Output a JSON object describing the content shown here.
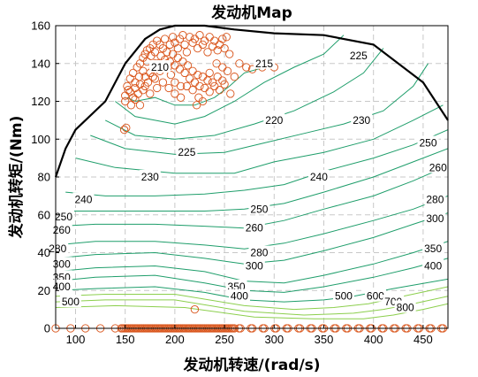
{
  "chart_data": {
    "type": "contour",
    "title": "发动机Map",
    "xlabel": "发动机转速/(rad/s)",
    "ylabel": "发动机转矩/(Nm)",
    "xlim": [
      80,
      475
    ],
    "ylim": [
      0,
      160
    ],
    "xticks": [
      "100",
      "150",
      "200",
      "250",
      "300",
      "350",
      "400",
      "450"
    ],
    "yticks": [
      "0",
      "20",
      "40",
      "60",
      "80",
      "100",
      "120",
      "140",
      "160"
    ],
    "grid": true,
    "colors": {
      "contour": "#1f9e6b",
      "contour_high": "#8ccf4d",
      "boundary": "#000000",
      "marker": "#d9541a"
    },
    "max_torque_curve": [
      [
        80,
        80
      ],
      [
        90,
        95
      ],
      [
        100,
        105
      ],
      [
        130,
        120
      ],
      [
        150,
        140
      ],
      [
        170,
        153
      ],
      [
        185,
        158
      ],
      [
        200,
        160
      ],
      [
        230,
        160
      ],
      [
        260,
        158
      ],
      [
        300,
        156
      ],
      [
        350,
        155
      ],
      [
        400,
        150
      ],
      [
        450,
        130
      ],
      [
        475,
        110
      ]
    ],
    "contour_labels": [
      {
        "text": "210",
        "x": 185,
        "y": 138
      },
      {
        "text": "215",
        "x": 290,
        "y": 140
      },
      {
        "text": "225",
        "x": 385,
        "y": 144
      },
      {
        "text": "220",
        "x": 300,
        "y": 110
      },
      {
        "text": "230",
        "x": 388,
        "y": 110
      },
      {
        "text": "225",
        "x": 212,
        "y": 93
      },
      {
        "text": "230",
        "x": 175,
        "y": 80
      },
      {
        "text": "240",
        "x": 345,
        "y": 80
      },
      {
        "text": "250",
        "x": 455,
        "y": 98
      },
      {
        "text": "260",
        "x": 465,
        "y": 85
      },
      {
        "text": "240",
        "x": 108,
        "y": 68
      },
      {
        "text": "250",
        "x": 88,
        "y": 59
      },
      {
        "text": "260",
        "x": 86,
        "y": 52
      },
      {
        "text": "250",
        "x": 285,
        "y": 63
      },
      {
        "text": "260",
        "x": 280,
        "y": 53
      },
      {
        "text": "280",
        "x": 462,
        "y": 68
      },
      {
        "text": "300",
        "x": 462,
        "y": 58
      },
      {
        "text": "280",
        "x": 82,
        "y": 42
      },
      {
        "text": "300",
        "x": 86,
        "y": 34
      },
      {
        "text": "350",
        "x": 86,
        "y": 27
      },
      {
        "text": "400",
        "x": 86,
        "y": 22
      },
      {
        "text": "500",
        "x": 95,
        "y": 14
      },
      {
        "text": "280",
        "x": 285,
        "y": 40
      },
      {
        "text": "300",
        "x": 280,
        "y": 33
      },
      {
        "text": "350",
        "x": 460,
        "y": 42
      },
      {
        "text": "400",
        "x": 460,
        "y": 33
      },
      {
        "text": "350",
        "x": 262,
        "y": 22
      },
      {
        "text": "400",
        "x": 265,
        "y": 17
      },
      {
        "text": "500",
        "x": 370,
        "y": 17
      },
      {
        "text": "600",
        "x": 402,
        "y": 17
      },
      {
        "text": "700",
        "x": 420,
        "y": 14
      },
      {
        "text": "800",
        "x": 432,
        "y": 11
      }
    ],
    "contour_lines": [
      {
        "level": 210,
        "points": [
          [
            152,
            122
          ],
          [
            160,
            120
          ],
          [
            180,
            122
          ],
          [
            200,
            118
          ],
          [
            220,
            118
          ],
          [
            240,
            122
          ],
          [
            255,
            128
          ],
          [
            270,
            135
          ],
          [
            290,
            138
          ],
          [
            300,
            138
          ]
        ]
      },
      {
        "level": 215,
        "points": [
          [
            140,
            120
          ],
          [
            160,
            112
          ],
          [
            200,
            108
          ],
          [
            230,
            112
          ],
          [
            260,
            120
          ],
          [
            290,
            130
          ],
          [
            320,
            138
          ],
          [
            350,
            145
          ],
          [
            370,
            155
          ]
        ]
      },
      {
        "level": 220,
        "points": [
          [
            130,
            110
          ],
          [
            160,
            102
          ],
          [
            200,
            100
          ],
          [
            240,
            102
          ],
          [
            280,
            108
          ],
          [
            320,
            115
          ],
          [
            360,
            125
          ],
          [
            390,
            135
          ],
          [
            410,
            148
          ]
        ]
      },
      {
        "level": 225,
        "points": [
          [
            115,
            102
          ],
          [
            150,
            95
          ],
          [
            200,
            92
          ],
          [
            250,
            93
          ],
          [
            290,
            98
          ],
          [
            330,
            103
          ],
          [
            370,
            108
          ],
          [
            410,
            115
          ],
          [
            440,
            128
          ],
          [
            455,
            140
          ]
        ]
      },
      {
        "level": 230,
        "points": [
          [
            100,
            90
          ],
          [
            140,
            85
          ],
          [
            200,
            82
          ],
          [
            260,
            82
          ],
          [
            300,
            88
          ],
          [
            350,
            93
          ],
          [
            400,
            100
          ],
          [
            440,
            110
          ],
          [
            470,
            118
          ]
        ]
      },
      {
        "level": 240,
        "points": [
          [
            90,
            72
          ],
          [
            130,
            70
          ],
          [
            180,
            70
          ],
          [
            230,
            71
          ],
          [
            270,
            73
          ],
          [
            310,
            76
          ],
          [
            350,
            83
          ],
          [
            400,
            90
          ],
          [
            440,
            97
          ],
          [
            475,
            105
          ]
        ]
      },
      {
        "level": 250,
        "points": [
          [
            82,
            62
          ],
          [
            120,
            62
          ],
          [
            180,
            62
          ],
          [
            230,
            62
          ],
          [
            270,
            63
          ],
          [
            310,
            66
          ],
          [
            350,
            72
          ],
          [
            400,
            80
          ],
          [
            440,
            88
          ],
          [
            475,
            95
          ]
        ]
      },
      {
        "level": 260,
        "points": [
          [
            82,
            54
          ],
          [
            120,
            55
          ],
          [
            180,
            55
          ],
          [
            230,
            54
          ],
          [
            270,
            53
          ],
          [
            310,
            57
          ],
          [
            350,
            63
          ],
          [
            400,
            70
          ],
          [
            440,
            78
          ],
          [
            475,
            86
          ]
        ]
      },
      {
        "level": 280,
        "points": [
          [
            80,
            44
          ],
          [
            120,
            46
          ],
          [
            180,
            46
          ],
          [
            230,
            44
          ],
          [
            270,
            42
          ],
          [
            310,
            45
          ],
          [
            350,
            50
          ],
          [
            400,
            57
          ],
          [
            440,
            63
          ],
          [
            475,
            70
          ]
        ]
      },
      {
        "level": 300,
        "points": [
          [
            80,
            37
          ],
          [
            120,
            39
          ],
          [
            180,
            40
          ],
          [
            230,
            37
          ],
          [
            270,
            34
          ],
          [
            310,
            36
          ],
          [
            350,
            41
          ],
          [
            400,
            48
          ],
          [
            440,
            55
          ],
          [
            475,
            61
          ]
        ]
      },
      {
        "level": 350,
        "points": [
          [
            80,
            30
          ],
          [
            120,
            32
          ],
          [
            180,
            33
          ],
          [
            230,
            30
          ],
          [
            270,
            25
          ],
          [
            310,
            24
          ],
          [
            350,
            28
          ],
          [
            400,
            34
          ],
          [
            440,
            40
          ],
          [
            475,
            46
          ]
        ]
      },
      {
        "level": 400,
        "points": [
          [
            80,
            25
          ],
          [
            120,
            27
          ],
          [
            180,
            28
          ],
          [
            230,
            24
          ],
          [
            270,
            20
          ],
          [
            310,
            19
          ],
          [
            350,
            22
          ],
          [
            400,
            27
          ],
          [
            440,
            32
          ],
          [
            475,
            37
          ]
        ]
      },
      {
        "level": 500,
        "points": [
          [
            80,
            20
          ],
          [
            120,
            21
          ],
          [
            180,
            22
          ],
          [
            230,
            19
          ],
          [
            270,
            15
          ],
          [
            310,
            14
          ],
          [
            350,
            15
          ],
          [
            380,
            17
          ],
          [
            420,
            21
          ],
          [
            475,
            26
          ]
        ]
      },
      {
        "level": 600,
        "points": [
          [
            80,
            17
          ],
          [
            130,
            18
          ],
          [
            200,
            18
          ],
          [
            270,
            12
          ],
          [
            320,
            10
          ],
          [
            360,
            11
          ],
          [
            395,
            13
          ],
          [
            430,
            17
          ],
          [
            475,
            22
          ]
        ]
      },
      {
        "level": 700,
        "points": [
          [
            80,
            14
          ],
          [
            130,
            15
          ],
          [
            200,
            15
          ],
          [
            270,
            9
          ],
          [
            330,
            7
          ],
          [
            380,
            8
          ],
          [
            410,
            10
          ],
          [
            440,
            13
          ],
          [
            475,
            17
          ]
        ]
      },
      {
        "level": 800,
        "points": [
          [
            80,
            11
          ],
          [
            140,
            12
          ],
          [
            210,
            11
          ],
          [
            280,
            6
          ],
          [
            340,
            5
          ],
          [
            390,
            5
          ],
          [
            420,
            7
          ],
          [
            450,
            10
          ],
          [
            475,
            13
          ]
        ]
      }
    ],
    "operating_points_upper": [
      [
        150,
        123
      ],
      [
        152,
        128
      ],
      [
        155,
        132
      ],
      [
        158,
        135
      ],
      [
        160,
        130
      ],
      [
        162,
        138
      ],
      [
        165,
        140
      ],
      [
        168,
        143
      ],
      [
        170,
        145
      ],
      [
        172,
        147
      ],
      [
        175,
        148
      ],
      [
        178,
        150
      ],
      [
        180,
        146
      ],
      [
        182,
        152
      ],
      [
        185,
        150
      ],
      [
        188,
        148
      ],
      [
        190,
        153
      ],
      [
        192,
        146
      ],
      [
        195,
        150
      ],
      [
        198,
        154
      ],
      [
        200,
        151
      ],
      [
        203,
        148
      ],
      [
        205,
        153
      ],
      [
        208,
        155
      ],
      [
        210,
        150
      ],
      [
        212,
        146
      ],
      [
        215,
        154
      ],
      [
        218,
        151
      ],
      [
        220,
        153
      ],
      [
        223,
        148
      ],
      [
        225,
        155
      ],
      [
        228,
        150
      ],
      [
        230,
        152
      ],
      [
        233,
        146
      ],
      [
        235,
        154
      ],
      [
        238,
        149
      ],
      [
        240,
        152
      ],
      [
        243,
        147
      ],
      [
        245,
        150
      ],
      [
        248,
        153
      ],
      [
        250,
        148
      ],
      [
        252,
        154
      ],
      [
        155,
        125
      ],
      [
        158,
        122
      ],
      [
        160,
        127
      ],
      [
        163,
        124
      ],
      [
        165,
        129
      ],
      [
        168,
        126
      ],
      [
        170,
        133
      ],
      [
        173,
        130
      ],
      [
        175,
        135
      ],
      [
        178,
        137
      ],
      [
        180,
        132
      ],
      [
        183,
        140
      ],
      [
        185,
        136
      ],
      [
        188,
        139
      ],
      [
        190,
        142
      ],
      [
        193,
        138
      ],
      [
        195,
        141
      ],
      [
        198,
        145
      ],
      [
        200,
        139
      ],
      [
        203,
        143
      ],
      [
        205,
        137
      ],
      [
        208,
        141
      ],
      [
        210,
        135
      ],
      [
        213,
        139
      ],
      [
        215,
        132
      ],
      [
        218,
        136
      ],
      [
        220,
        130
      ],
      [
        223,
        134
      ],
      [
        225,
        128
      ],
      [
        228,
        133
      ],
      [
        230,
        127
      ],
      [
        233,
        131
      ],
      [
        235,
        125
      ],
      [
        238,
        130
      ],
      [
        240,
        128
      ],
      [
        243,
        133
      ],
      [
        245,
        126
      ],
      [
        248,
        131
      ],
      [
        250,
        129
      ],
      [
        150,
        120
      ],
      [
        153,
        126
      ],
      [
        156,
        118
      ],
      [
        160,
        121
      ],
      [
        164,
        133
      ],
      [
        168,
        136
      ],
      [
        172,
        141
      ],
      [
        176,
        144
      ],
      [
        180,
        140
      ],
      [
        186,
        144
      ],
      [
        192,
        140
      ],
      [
        196,
        134
      ],
      [
        200,
        130
      ],
      [
        206,
        128
      ],
      [
        212,
        128
      ],
      [
        218,
        126
      ],
      [
        224,
        122
      ],
      [
        228,
        120
      ],
      [
        222,
        118
      ],
      [
        235,
        135
      ],
      [
        242,
        140
      ],
      [
        248,
        138
      ],
      [
        255,
        145
      ],
      [
        253,
        136
      ],
      [
        256,
        124
      ],
      [
        260,
        133
      ],
      [
        265,
        140
      ],
      [
        272,
        138
      ],
      [
        278,
        137
      ],
      [
        288,
        138
      ],
      [
        300,
        138
      ],
      [
        182,
        127
      ],
      [
        188,
        130
      ],
      [
        194,
        127
      ],
      [
        200,
        124
      ],
      [
        206,
        122
      ],
      [
        149,
        105
      ],
      [
        151,
        106
      ],
      [
        170,
        128
      ],
      [
        175,
        124
      ],
      [
        165,
        118
      ],
      [
        178,
        133
      ]
    ],
    "operating_points_bottom_start": 80,
    "operating_points_bottom_end": 470,
    "operating_points_isolated": [
      [
        220,
        10
      ]
    ]
  }
}
